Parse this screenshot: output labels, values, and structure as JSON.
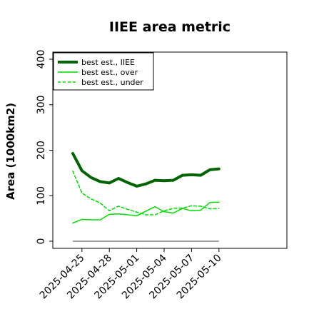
{
  "chart_data": {
    "type": "line",
    "title": "IIEE area metric",
    "xlabel": "",
    "ylabel": "Area (1000km2)",
    "ylim": [
      -10,
      410
    ],
    "yticks": [
      0,
      100,
      200,
      300,
      400
    ],
    "x": [
      "2025-04-24",
      "2025-04-25",
      "2025-04-26",
      "2025-04-27",
      "2025-04-28",
      "2025-04-29",
      "2025-04-30",
      "2025-05-01",
      "2025-05-02",
      "2025-05-03",
      "2025-05-04",
      "2025-05-05",
      "2025-05-06",
      "2025-05-07",
      "2025-05-08",
      "2025-05-09",
      "2025-05-10"
    ],
    "xticks": [
      "2025-04-25",
      "2025-04-28",
      "2025-05-01",
      "2025-05-04",
      "2025-05-07",
      "2025-05-10"
    ],
    "reference_line": 0,
    "legend_position": "upper-left",
    "series": [
      {
        "name": "best est., IIEE",
        "color": "#006400",
        "style": "solid",
        "width": 4,
        "values": [
          193,
          155,
          140,
          131,
          128,
          138,
          129,
          121,
          126,
          134,
          133,
          134,
          145,
          146,
          145,
          157,
          159
        ]
      },
      {
        "name": "best est., over",
        "color": "#00dd00",
        "style": "solid",
        "width": 1.5,
        "values": [
          40,
          48,
          47,
          47,
          59,
          60,
          58,
          56,
          66,
          76,
          65,
          62,
          72,
          67,
          68,
          85,
          86
        ]
      },
      {
        "name": "best est., under",
        "color": "#00dd00",
        "style": "dashed",
        "width": 1.5,
        "values": [
          154,
          106,
          93,
          84,
          67,
          77,
          70,
          64,
          58,
          58,
          67,
          72,
          73,
          78,
          77,
          71,
          72
        ]
      }
    ]
  }
}
